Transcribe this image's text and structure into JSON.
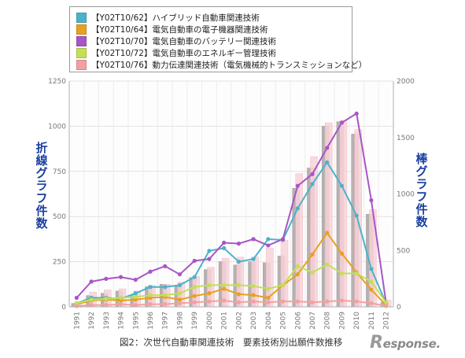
{
  "legend": {
    "items": [
      {
        "label": "【Y02T10/62】ハイブリッド自動車関連技術",
        "color": "#4bb3c9"
      },
      {
        "label": "【Y02T10/64】電気自動車の電子機器関連技術",
        "color": "#e8a020"
      },
      {
        "label": "【Y02T10/70】電気自動車のバッテリー関連技術",
        "color": "#a855c6"
      },
      {
        "label": "【Y02T10/72】電気自動車のエネルギー管理技術",
        "color": "#c3e055"
      },
      {
        "label": "【Y02T10/76】動力伝達関連技術（電気機械的トランスミッションなど）",
        "color": "#f4a0a0"
      }
    ]
  },
  "left_label": "折線グラフ件数",
  "right_label": "棒グラフ件数",
  "caption": "図2：次世代自動車関連技術　要素技術別出願件数推移",
  "logo": {
    "r": "R",
    "rest": "esponse."
  },
  "chart_data": {
    "type": "bar+line",
    "categories": [
      "1991",
      "1992",
      "1993",
      "1994",
      "1995",
      "1996",
      "1997",
      "1998",
      "1999",
      "2000",
      "2001",
      "2002",
      "2003",
      "2004",
      "2005",
      "2006",
      "2007",
      "2008",
      "2009",
      "2010",
      "2011",
      "2012"
    ],
    "left_axis": {
      "ylim": [
        0,
        1250
      ],
      "ticks": [
        0,
        250,
        500,
        750,
        1000,
        1250
      ]
    },
    "right_axis": {
      "ylim": [
        0,
        2000
      ],
      "ticks": [
        0,
        500,
        1000,
        1500,
        2000
      ]
    },
    "bar_series": [
      {
        "axis": "right",
        "color": "#b8b0b0",
        "values": [
          30,
          100,
          120,
          140,
          110,
          180,
          200,
          180,
          260,
          330,
          400,
          370,
          400,
          390,
          450,
          1050,
          1230,
          1600,
          1640,
          1530,
          820,
          40
        ]
      },
      {
        "axis": "right",
        "color": "#f8d3d9",
        "values": [
          40,
          130,
          150,
          160,
          140,
          190,
          200,
          220,
          270,
          350,
          430,
          440,
          440,
          520,
          590,
          1180,
          1330,
          1630,
          1650,
          1570,
          860,
          60
        ]
      }
    ],
    "line_series": [
      {
        "axis": "left",
        "color": "#4bb3c9",
        "values": [
          20,
          50,
          50,
          45,
          75,
          110,
          110,
          120,
          165,
          310,
          325,
          250,
          265,
          375,
          370,
          545,
          680,
          800,
          670,
          505,
          210,
          20
        ]
      },
      {
        "axis": "left",
        "color": "#e8a020",
        "values": [
          15,
          35,
          40,
          35,
          40,
          50,
          55,
          40,
          60,
          75,
          100,
          70,
          65,
          50,
          120,
          180,
          290,
          410,
          295,
          190,
          95,
          10
        ]
      },
      {
        "axis": "left",
        "color": "#a855c6",
        "values": [
          50,
          140,
          155,
          165,
          150,
          195,
          225,
          180,
          255,
          265,
          355,
          350,
          375,
          340,
          375,
          670,
          735,
          880,
          1020,
          1070,
          590,
          25
        ]
      },
      {
        "axis": "left",
        "color": "#c3e055",
        "values": [
          20,
          40,
          45,
          50,
          55,
          65,
          65,
          75,
          110,
          120,
          120,
          120,
          115,
          100,
          120,
          225,
          190,
          235,
          185,
          185,
          140,
          25
        ]
      },
      {
        "axis": "left",
        "color": "#f4a0a0",
        "values": [
          5,
          10,
          10,
          15,
          10,
          15,
          15,
          20,
          25,
          30,
          35,
          25,
          30,
          25,
          30,
          30,
          25,
          30,
          35,
          30,
          20,
          5
        ]
      }
    ]
  }
}
